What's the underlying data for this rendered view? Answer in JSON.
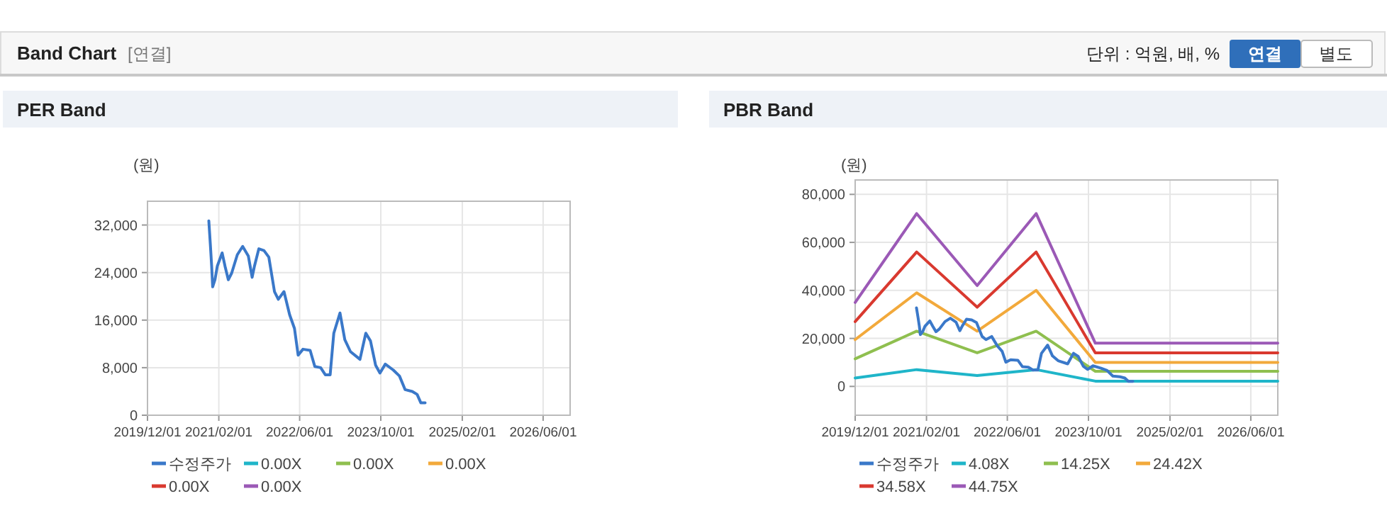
{
  "chart_data": [
    {
      "type": "other",
      "title": "Band Chart",
      "annotations": [
        "[연결]",
        "단위 : 억원, 배, %",
        "연결",
        "별도"
      ]
    },
    {
      "type": "line",
      "title": "PER Band",
      "ylabel": "(원)",
      "xlim": [
        "2019-12-01",
        "2026-11-10"
      ],
      "ylim": [
        0,
        36000
      ],
      "xticks": [
        {
          "value": "2019-12-01",
          "label": "2019/12/01"
        },
        {
          "value": "2021-02-01",
          "label": "2021/02/01"
        },
        {
          "value": "2022-06-01",
          "label": "2022/06/01"
        },
        {
          "value": "2023-10-01",
          "label": "2023/10/01"
        },
        {
          "value": "2025-02-01",
          "label": "2025/02/01"
        },
        {
          "value": "2026-06-01",
          "label": "2026/06/01"
        }
      ],
      "yticks": [
        0,
        {
          "value": 8000,
          "label": "8,000"
        },
        {
          "value": 16000,
          "label": "16,000"
        },
        {
          "value": 24000,
          "label": "24,000"
        },
        {
          "value": 32000,
          "label": "32,000"
        }
      ],
      "grid": true,
      "legend": "bottom",
      "marker": "none",
      "line_style": "solid",
      "series": [
        {
          "name": "수정주가",
          "color": "#3a78c9",
          "x": [
            "2020-12-03",
            "2020-12-12",
            "2020-12-20",
            "2020-12-26",
            "2021-01-09",
            "2021-01-23",
            "2021-02-21",
            "2021-03-10",
            "2021-03-30",
            "2021-04-19",
            "2021-05-23",
            "2021-06-24",
            "2021-07-28",
            "2021-08-20",
            "2021-09-03",
            "2021-09-29",
            "2021-10-30",
            "2021-11-28",
            "2022-01-01",
            "2022-01-24",
            "2022-02-27",
            "2022-04-02",
            "2022-05-01",
            "2022-05-23",
            "2022-06-21",
            "2022-08-03",
            "2022-08-31",
            "2022-10-05",
            "2022-11-02",
            "2022-12-01",
            "2022-12-23",
            "2023-01-29",
            "2023-02-27",
            "2023-04-02",
            "2023-05-29",
            "2023-07-03",
            "2023-07-31",
            "2023-08-31",
            "2023-09-26",
            "2023-10-28",
            "2023-12-15",
            "2024-01-21",
            "2024-02-24",
            "2024-04-07",
            "2024-05-06",
            "2024-05-28",
            "2024-06-23"
          ],
          "values": [
            32700,
            28800,
            25100,
            21600,
            22800,
            25100,
            27300,
            25100,
            22800,
            23900,
            27000,
            28400,
            26800,
            23200,
            25100,
            28000,
            27700,
            26600,
            20800,
            19500,
            20800,
            16900,
            14600,
            10100,
            11100,
            10900,
            8200,
            8000,
            6800,
            6800,
            13800,
            17200,
            12700,
            10700,
            9400,
            13800,
            12500,
            8400,
            7100,
            8600,
            7600,
            6600,
            4300,
            4000,
            3500,
            2100,
            2100
          ]
        },
        {
          "name": "0.00X",
          "color": "#1fb5c9"
        },
        {
          "name": "0.00X",
          "color": "#8fbf4f"
        },
        {
          "name": "0.00X",
          "color": "#f2a93b"
        },
        {
          "name": "0.00X",
          "color": "#d9392f"
        },
        {
          "name": "0.00X",
          "color": "#9b59b6"
        }
      ]
    },
    {
      "type": "line",
      "title": "PBR Band",
      "ylabel": "(원)",
      "xlim": [
        "2019-12-01",
        "2026-11-10"
      ],
      "ylim": [
        -12000,
        86000
      ],
      "xticks": [
        {
          "value": "2019-12-01",
          "label": "2019/12/01"
        },
        {
          "value": "2021-02-01",
          "label": "2021/02/01"
        },
        {
          "value": "2022-06-01",
          "label": "2022/06/01"
        },
        {
          "value": "2023-10-01",
          "label": "2023/10/01"
        },
        {
          "value": "2025-02-01",
          "label": "2025/02/01"
        },
        {
          "value": "2026-06-01",
          "label": "2026/06/01"
        }
      ],
      "yticks": [
        0,
        {
          "value": 20000,
          "label": "20,000"
        },
        {
          "value": 40000,
          "label": "40,000"
        },
        {
          "value": 60000,
          "label": "60,000"
        },
        {
          "value": 80000,
          "label": "80,000"
        }
      ],
      "grid": true,
      "legend": "bottom",
      "marker": "none",
      "line_style": "solid",
      "series": [
        {
          "name": "수정주가",
          "color": "#3a78c9",
          "x": [
            "2020-12-03",
            "2020-12-12",
            "2020-12-20",
            "2020-12-26",
            "2021-01-09",
            "2021-01-23",
            "2021-02-21",
            "2021-03-10",
            "2021-03-30",
            "2021-04-19",
            "2021-05-23",
            "2021-06-24",
            "2021-07-28",
            "2021-08-20",
            "2021-09-03",
            "2021-09-29",
            "2021-10-30",
            "2021-11-28",
            "2022-01-01",
            "2022-01-24",
            "2022-02-27",
            "2022-04-02",
            "2022-05-01",
            "2022-05-23",
            "2022-06-21",
            "2022-08-03",
            "2022-08-31",
            "2022-10-05",
            "2022-11-02",
            "2022-12-01",
            "2022-12-23",
            "2023-01-29",
            "2023-02-27",
            "2023-04-02",
            "2023-05-29",
            "2023-07-03",
            "2023-07-31",
            "2023-08-31",
            "2023-09-26",
            "2023-10-28",
            "2023-12-15",
            "2024-01-21",
            "2024-02-24",
            "2024-04-07",
            "2024-05-06",
            "2024-05-28",
            "2024-06-23"
          ],
          "values": [
            32700,
            28800,
            25100,
            21600,
            22800,
            25100,
            27300,
            25100,
            22800,
            23900,
            27000,
            28400,
            26800,
            23200,
            25100,
            28000,
            27700,
            26600,
            20800,
            19500,
            20800,
            16900,
            14600,
            10100,
            11100,
            10900,
            8200,
            8000,
            6800,
            6800,
            13800,
            17200,
            12700,
            10700,
            9400,
            13800,
            12500,
            8400,
            7100,
            8600,
            7600,
            6600,
            4300,
            4000,
            3500,
            2100,
            2100
          ]
        },
        {
          "name": "4.08X",
          "color": "#1fb5c9",
          "x": [
            "2019-12-01",
            "2020-12-04",
            "2021-12-02",
            "2022-11-21",
            "2023-11-11",
            "2026-11-10"
          ],
          "values": [
            3500,
            7000,
            4500,
            7000,
            2200,
            2200
          ]
        },
        {
          "name": "14.25X",
          "color": "#8fbf4f",
          "x": [
            "2019-12-01",
            "2020-12-04",
            "2021-12-02",
            "2022-11-21",
            "2023-11-11",
            "2026-11-10"
          ],
          "values": [
            11500,
            23000,
            14000,
            23000,
            6300,
            6300
          ]
        },
        {
          "name": "24.42X",
          "color": "#f2a93b",
          "x": [
            "2019-12-01",
            "2020-12-04",
            "2021-12-02",
            "2022-11-21",
            "2023-11-11",
            "2026-11-10"
          ],
          "values": [
            19500,
            39000,
            23000,
            40000,
            10000,
            10000
          ]
        },
        {
          "name": "34.58X",
          "color": "#d9392f",
          "x": [
            "2019-12-01",
            "2020-12-04",
            "2021-12-02",
            "2022-11-21",
            "2023-11-11",
            "2026-11-10"
          ],
          "values": [
            27000,
            56000,
            33000,
            56000,
            14000,
            14000
          ]
        },
        {
          "name": "44.75X",
          "color": "#9b59b6",
          "x": [
            "2019-12-01",
            "2020-12-04",
            "2021-12-02",
            "2022-11-21",
            "2023-11-11",
            "2026-11-10"
          ],
          "values": [
            35000,
            72000,
            42000,
            72000,
            18000,
            18000
          ]
        }
      ]
    }
  ]
}
